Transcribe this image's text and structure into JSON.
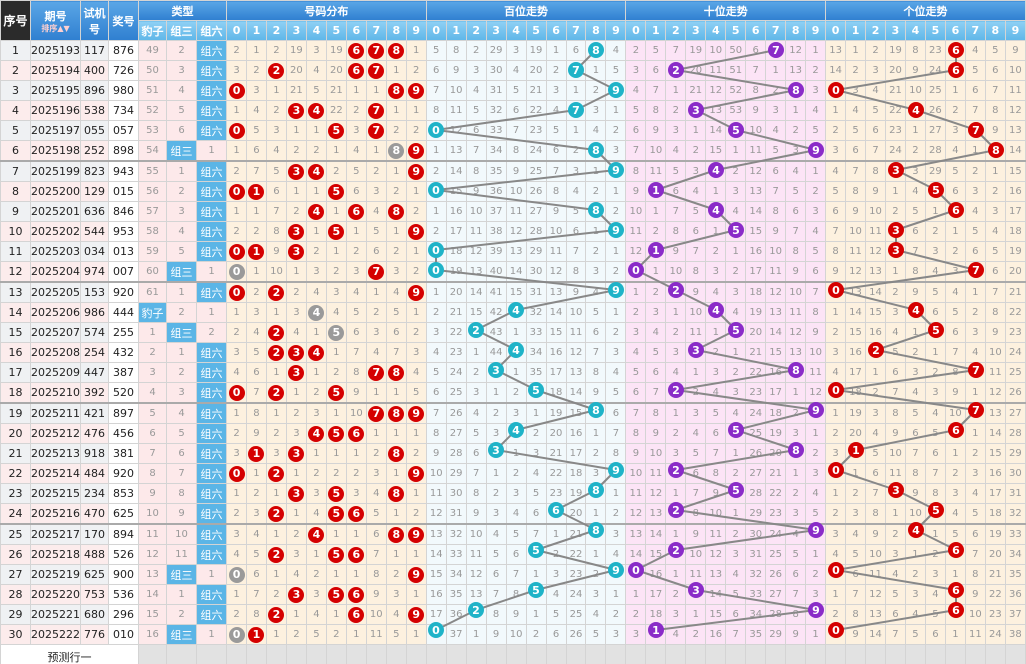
{
  "header": {
    "no": "序号",
    "issue": "期号",
    "sort": "排序",
    "trial": "试机号",
    "draw": "奖号",
    "type": "类型",
    "dist": "号码分布",
    "bai": "百位走势",
    "shi": "十位走势",
    "ge": "个位走势",
    "type_cols": [
      "豹子",
      "组三",
      "组六"
    ],
    "digits": [
      "0",
      "1",
      "2",
      "3",
      "4",
      "5",
      "6",
      "7",
      "8",
      "9"
    ]
  },
  "type_labels": {
    "baozi": "豹子",
    "zusan": "组三",
    "zuliu": "组六"
  },
  "colors": {
    "header": "#2f7fd0",
    "subheader": "#5fb6e8",
    "dist_ball": "#d50000",
    "repeat_ball": "#9a9a9a",
    "bai_ball": "#1fb3c8",
    "shi_ball": "#8a2bc8",
    "ge_ball": "#d50000",
    "line": "#888888"
  },
  "rows": [
    {
      "no": "1",
      "issue": "2025193",
      "trial": "117",
      "draw": "876"
    },
    {
      "no": "2",
      "issue": "2025194",
      "trial": "400",
      "draw": "726"
    },
    {
      "no": "3",
      "issue": "2025195",
      "trial": "896",
      "draw": "980"
    },
    {
      "no": "4",
      "issue": "2025196",
      "trial": "538",
      "draw": "734"
    },
    {
      "no": "5",
      "issue": "2025197",
      "trial": "055",
      "draw": "057"
    },
    {
      "no": "6",
      "issue": "2025198",
      "trial": "252",
      "draw": "898"
    },
    {
      "no": "7",
      "issue": "2025199",
      "trial": "823",
      "draw": "943"
    },
    {
      "no": "8",
      "issue": "2025200",
      "trial": "129",
      "draw": "015"
    },
    {
      "no": "9",
      "issue": "2025201",
      "trial": "636",
      "draw": "846"
    },
    {
      "no": "10",
      "issue": "2025202",
      "trial": "544",
      "draw": "953"
    },
    {
      "no": "11",
      "issue": "2025203",
      "trial": "034",
      "draw": "013"
    },
    {
      "no": "12",
      "issue": "2025204",
      "trial": "974",
      "draw": "007"
    },
    {
      "no": "13",
      "issue": "2025205",
      "trial": "153",
      "draw": "920"
    },
    {
      "no": "14",
      "issue": "2025206",
      "trial": "986",
      "draw": "444"
    },
    {
      "no": "15",
      "issue": "2025207",
      "trial": "574",
      "draw": "255"
    },
    {
      "no": "16",
      "issue": "2025208",
      "trial": "254",
      "draw": "432"
    },
    {
      "no": "17",
      "issue": "2025209",
      "trial": "447",
      "draw": "387"
    },
    {
      "no": "18",
      "issue": "2025210",
      "trial": "392",
      "draw": "520"
    },
    {
      "no": "19",
      "issue": "2025211",
      "trial": "421",
      "draw": "897"
    },
    {
      "no": "20",
      "issue": "2025212",
      "trial": "476",
      "draw": "456"
    },
    {
      "no": "21",
      "issue": "2025213",
      "trial": "918",
      "draw": "381"
    },
    {
      "no": "22",
      "issue": "2025214",
      "trial": "484",
      "draw": "920"
    },
    {
      "no": "23",
      "issue": "2025215",
      "trial": "234",
      "draw": "853"
    },
    {
      "no": "24",
      "issue": "2025216",
      "trial": "470",
      "draw": "625"
    },
    {
      "no": "25",
      "issue": "2025217",
      "trial": "170",
      "draw": "894"
    },
    {
      "no": "26",
      "issue": "2025218",
      "trial": "488",
      "draw": "526"
    },
    {
      "no": "27",
      "issue": "2025219",
      "trial": "625",
      "draw": "900"
    },
    {
      "no": "28",
      "issue": "2025220",
      "trial": "753",
      "draw": "536"
    },
    {
      "no": "29",
      "issue": "2025221",
      "trial": "680",
      "draw": "296"
    },
    {
      "no": "30",
      "issue": "2025222",
      "trial": "776",
      "draw": "010"
    }
  ],
  "first_row_omissions": {
    "type": [
      49,
      2,
      null
    ],
    "dist": [
      2,
      1,
      2,
      19,
      3,
      19,
      null,
      null,
      null,
      1
    ],
    "bai": [
      5,
      8,
      2,
      29,
      3,
      19,
      1,
      6,
      null,
      4
    ],
    "shi": [
      2,
      5,
      7,
      19,
      10,
      50,
      6,
      null,
      12,
      1
    ],
    "ge": [
      13,
      1,
      2,
      19,
      8,
      23,
      null,
      4,
      5,
      9
    ]
  },
  "footer": {
    "predict_label": "预测行一"
  }
}
